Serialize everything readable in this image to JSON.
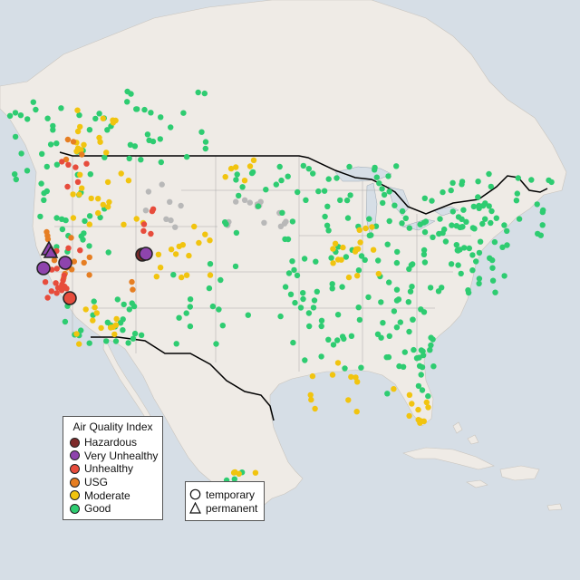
{
  "legend": {
    "title": "Air Quality Index",
    "levels": [
      {
        "label": "Hazardous",
        "color": "#7e2a2a"
      },
      {
        "label": "Very Unhealthy",
        "color": "#8e44ad"
      },
      {
        "label": "Unhealthy",
        "color": "#e74c3c"
      },
      {
        "label": "USG",
        "color": "#e67e22"
      },
      {
        "label": "Moderate",
        "color": "#f1c40f"
      },
      {
        "label": "Good",
        "color": "#2ecc71"
      }
    ]
  },
  "monitor_legend": {
    "temporary_label": "temporary",
    "permanent_label": "permanent"
  },
  "colors": {
    "water": "#d6dee6",
    "land": "#efebe6",
    "no_data": "#b8b8b8"
  }
}
